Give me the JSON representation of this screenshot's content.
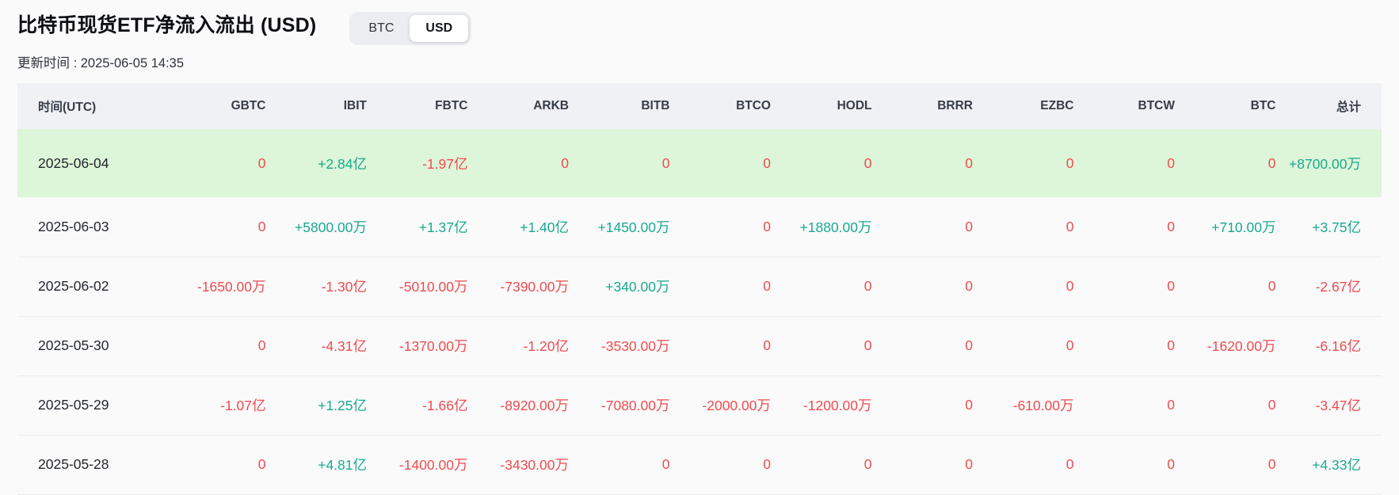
{
  "page": {
    "title": "比特币现货ETF净流入流出 (USD)",
    "updated_label": "更新时间 : 2025-06-05 14:35",
    "toggle": {
      "options": [
        "BTC",
        "USD"
      ],
      "selected": "USD"
    }
  },
  "colors": {
    "positive": "#19aa8f",
    "negative": "#f04b4f",
    "highlight_row": "#ddf5d8",
    "header_bg": "#eff1f4"
  },
  "table": {
    "columns": [
      "时间(UTC)",
      "GBTC",
      "IBIT",
      "FBTC",
      "ARKB",
      "BITB",
      "BTCO",
      "HODL",
      "BRRR",
      "EZBC",
      "BTCW",
      "BTC",
      "总计"
    ],
    "rows": [
      {
        "date": "2025-06-04",
        "highlighted": true,
        "values": [
          "0",
          "+2.84亿",
          "-1.97亿",
          "0",
          "0",
          "0",
          "0",
          "0",
          "0",
          "0",
          "0",
          "+8700.00万"
        ]
      },
      {
        "date": "2025-06-03",
        "highlighted": false,
        "values": [
          "0",
          "+5800.00万",
          "+1.37亿",
          "+1.40亿",
          "+1450.00万",
          "0",
          "+1880.00万",
          "0",
          "0",
          "0",
          "+710.00万",
          "+3.75亿"
        ]
      },
      {
        "date": "2025-06-02",
        "highlighted": false,
        "values": [
          "-1650.00万",
          "-1.30亿",
          "-5010.00万",
          "-7390.00万",
          "+340.00万",
          "0",
          "0",
          "0",
          "0",
          "0",
          "0",
          "-2.67亿"
        ]
      },
      {
        "date": "2025-05-30",
        "highlighted": false,
        "values": [
          "0",
          "-4.31亿",
          "-1370.00万",
          "-1.20亿",
          "-3530.00万",
          "0",
          "0",
          "0",
          "0",
          "0",
          "-1620.00万",
          "-6.16亿"
        ]
      },
      {
        "date": "2025-05-29",
        "highlighted": false,
        "values": [
          "-1.07亿",
          "+1.25亿",
          "-1.66亿",
          "-8920.00万",
          "-7080.00万",
          "-2000.00万",
          "-1200.00万",
          "0",
          "-610.00万",
          "0",
          "0",
          "-3.47亿"
        ]
      },
      {
        "date": "2025-05-28",
        "highlighted": false,
        "values": [
          "0",
          "+4.81亿",
          "-1400.00万",
          "-3430.00万",
          "0",
          "0",
          "0",
          "0",
          "0",
          "0",
          "0",
          "+4.33亿"
        ]
      }
    ]
  }
}
